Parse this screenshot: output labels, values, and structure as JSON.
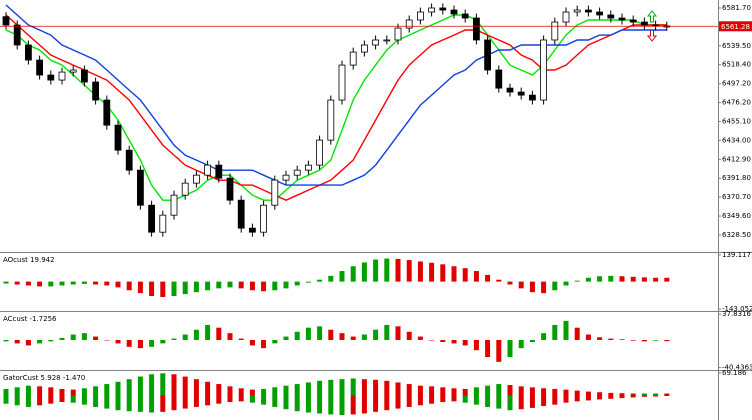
{
  "chart_data": [
    {
      "type": "candlestick",
      "ylim": [
        6309.5,
        6590.6
      ],
      "yticks": [
        {
          "value": 6581.7,
          "label": "6581.70"
        },
        {
          "value": 6539.5,
          "label": "6539.50"
        },
        {
          "value": 6518.4,
          "label": "6518.40"
        },
        {
          "value": 6497.2,
          "label": "6497.20"
        },
        {
          "value": 6476.2,
          "label": "6476.20"
        },
        {
          "value": 6455.1,
          "label": "6455.10"
        },
        {
          "value": 6434.0,
          "label": "6434.00"
        },
        {
          "value": 6412.9,
          "label": "6412.90"
        },
        {
          "value": 6391.8,
          "label": "6391.80"
        },
        {
          "value": 6370.7,
          "label": "6370.70"
        },
        {
          "value": 6349.6,
          "label": "6349.60"
        },
        {
          "value": 6328.5,
          "label": "6328.50"
        }
      ],
      "last_price": 6561.28,
      "last_price_color": "#e00000",
      "up_color": "#ffffff",
      "down_color": "#000000",
      "candles": {
        "open": [
          6572,
          6562.7,
          6540.4,
          6523.6,
          6506.9,
          6501.3,
          6510.2,
          6512.5,
          6499.1,
          6479.0,
          6451.0,
          6423.1,
          6400.8,
          6361.7,
          6331.6,
          6350.6,
          6372.9,
          6386.3,
          6395.2,
          6406.4,
          6391.9,
          6367.3,
          6336.1,
          6331.6,
          6361.7,
          6389.7,
          6395.2,
          6400.8,
          6406.4,
          6434.3,
          6479.0,
          6518.0,
          6532.5,
          6540.4,
          6546.0,
          6546.0,
          6559.3,
          6568.3,
          6577.2,
          6581.7,
          6579.4,
          6575.0,
          6570.5,
          6546.0,
          6512.5,
          6492.3,
          6487.9,
          6484.5,
          6479.0,
          6546.0,
          6566.0,
          6577.2,
          6579.4,
          6577.2,
          6573.9,
          6570.5,
          6568.3,
          6566.0,
          6562.7,
          6561.6
        ],
        "high": [
          6577,
          6567.7,
          6545.4,
          6528.6,
          6511.9,
          6515.2,
          6517.5,
          6517.5,
          6504.1,
          6484.0,
          6456.0,
          6428.1,
          6405.8,
          6366.7,
          6355.6,
          6377.9,
          6391.3,
          6400.2,
          6411.4,
          6411.4,
          6396.9,
          6372.3,
          6341.1,
          6366.7,
          6394.7,
          6400.2,
          6405.8,
          6411.4,
          6439.3,
          6484.0,
          6523.0,
          6537.5,
          6545.4,
          6551.0,
          6551.0,
          6564.3,
          6573.3,
          6582.2,
          6586.7,
          6586.7,
          6584.4,
          6580.0,
          6575.5,
          6551.0,
          6517.5,
          6497.3,
          6492.9,
          6489.5,
          6551.0,
          6571.0,
          6582.2,
          6584.4,
          6584.4,
          6582.2,
          6578.9,
          6575.5,
          6573.3,
          6571.0,
          6567.7,
          6566.6
        ],
        "low": [
          6557.7,
          6535.4,
          6518.6,
          6501.9,
          6496.3,
          6496.3,
          6505.2,
          6494.1,
          6474.0,
          6446.0,
          6418.1,
          6395.8,
          6356.7,
          6326.6,
          6326.6,
          6345.6,
          6367.9,
          6381.3,
          6390.2,
          6386.9,
          6362.3,
          6331.1,
          6326.6,
          6326.6,
          6356.7,
          6384.7,
          6390.2,
          6395.8,
          6401.4,
          6429.3,
          6474.0,
          6513.0,
          6527.5,
          6535.4,
          6541.0,
          6541.0,
          6554.3,
          6563.3,
          6572.2,
          6574.4,
          6570.0,
          6565.5,
          6541.0,
          6507.5,
          6487.3,
          6482.9,
          6479.5,
          6474.0,
          6474.0,
          6541.0,
          6561.0,
          6572.2,
          6572.2,
          6568.9,
          6565.5,
          6563.3,
          6561.0,
          6557.7,
          6556.6,
          6556.3
        ],
        "close": [
          6562.7,
          6540.4,
          6523.6,
          6506.9,
          6501.3,
          6510.2,
          6512.5,
          6499.1,
          6479.0,
          6451.0,
          6423.1,
          6400.8,
          6361.7,
          6331.6,
          6350.6,
          6372.9,
          6386.3,
          6395.2,
          6406.4,
          6391.9,
          6367.3,
          6336.1,
          6331.6,
          6361.7,
          6389.7,
          6395.2,
          6400.8,
          6406.4,
          6434.3,
          6479.0,
          6518.0,
          6532.5,
          6540.4,
          6546.0,
          6546.0,
          6559.3,
          6568.3,
          6577.2,
          6581.7,
          6579.4,
          6575.0,
          6570.5,
          6546.0,
          6512.5,
          6492.3,
          6487.9,
          6484.5,
          6479.0,
          6546.0,
          6566.0,
          6577.2,
          6579.4,
          6577.2,
          6573.9,
          6570.5,
          6568.3,
          6566.0,
          6562.7,
          6561.6,
          6561.3
        ]
      },
      "series": [
        {
          "color": "#00e600",
          "values": [
            6557.1,
            6551.5,
            6540.4,
            6534.8,
            6523.6,
            6518.0,
            6506.9,
            6495.7,
            6484.5,
            6473.4,
            6456.6,
            6434.3,
            6412.0,
            6384.1,
            6367.3,
            6367.3,
            6372.9,
            6378.5,
            6389.6,
            6395.2,
            6395.2,
            6384.1,
            6372.9,
            6367.3,
            6367.3,
            6378.5,
            6389.6,
            6395.2,
            6400.8,
            6412.0,
            6445.5,
            6479.0,
            6501.3,
            6518.0,
            6534.8,
            6546.0,
            6551.5,
            6557.1,
            6562.7,
            6568.3,
            6573.9,
            6573.9,
            6568.3,
            6551.5,
            6534.8,
            6518.0,
            6512.5,
            6506.9,
            6518.0,
            6534.8,
            6551.5,
            6562.7,
            6568.3,
            6568.3,
            6568.3,
            6568.3,
            6568.3,
            6562.7,
            6562.7,
            6562.7
          ]
        },
        {
          "color": "#ff0000",
          "values": [
            6573.9,
            6562.7,
            6551.5,
            6540.4,
            6529.2,
            6523.6,
            6518.0,
            6512.5,
            6506.9,
            6501.3,
            6490.1,
            6479.0,
            6462.2,
            6445.5,
            6428.7,
            6417.6,
            6406.4,
            6400.8,
            6395.2,
            6389.6,
            6389.6,
            6384.1,
            6384.1,
            6378.5,
            6372.9,
            6367.3,
            6372.9,
            6378.5,
            6384.1,
            6389.6,
            6400.8,
            6412.0,
            6434.3,
            6456.6,
            6479.0,
            6501.3,
            6518.0,
            6529.2,
            6540.4,
            6546.0,
            6551.5,
            6557.1,
            6557.1,
            6551.5,
            6546.0,
            6540.4,
            6529.2,
            6523.6,
            6512.5,
            6512.5,
            6518.0,
            6529.2,
            6540.4,
            6546.0,
            6551.5,
            6557.1,
            6562.7,
            6562.7,
            6562.7,
            6562.7
          ]
        },
        {
          "color": "#1040e0",
          "values": [
            6585.0,
            6573.9,
            6562.7,
            6557.1,
            6551.5,
            6540.4,
            6534.8,
            6529.2,
            6523.6,
            6512.5,
            6501.3,
            6490.1,
            6479.0,
            6462.2,
            6445.5,
            6428.7,
            6417.6,
            6412.0,
            6406.4,
            6400.8,
            6400.8,
            6400.8,
            6400.8,
            6395.2,
            6389.6,
            6384.1,
            6384.1,
            6384.1,
            6384.1,
            6384.1,
            6384.1,
            6389.6,
            6395.2,
            6406.4,
            6423.1,
            6439.9,
            6456.6,
            6473.4,
            6484.5,
            6495.7,
            6506.9,
            6512.5,
            6523.6,
            6529.2,
            6534.8,
            6534.8,
            6540.4,
            6540.4,
            6540.4,
            6540.4,
            6540.4,
            6546.0,
            6546.0,
            6551.5,
            6551.5,
            6557.1,
            6557.1,
            6557.1,
            6557.1,
            6557.1
          ]
        }
      ]
    },
    {
      "type": "bar",
      "title": "AOcust 19.942",
      "ylim": [
        -153,
        149
      ],
      "yticks": [
        139.117,
        -143.052
      ],
      "color_by": "change",
      "up_color": "#00a000",
      "down_color": "#e00000",
      "series": [
        {
          "values": [
            -10,
            -15,
            -20,
            -25,
            -25,
            -20,
            -15,
            -12,
            -15,
            -20,
            -30,
            -45,
            -60,
            -75,
            -80,
            -75,
            -65,
            -55,
            -45,
            -35,
            -30,
            -35,
            -45,
            -50,
            -45,
            -35,
            -20,
            -5,
            10,
            30,
            55,
            80,
            100,
            115,
            120,
            118,
            112,
            105,
            98,
            90,
            80,
            70,
            55,
            35,
            10,
            -15,
            -35,
            -55,
            -60,
            -45,
            -20,
            5,
            20,
            28,
            30,
            28,
            25,
            22,
            20,
            19.942
          ]
        }
      ]
    },
    {
      "type": "bar",
      "title": "ACcust -1.7256",
      "ylim": [
        -44,
        41
      ],
      "yticks": [
        37.8316,
        -40.4363
      ],
      "color_by": "change",
      "up_color": "#00a000",
      "down_color": "#e00000",
      "series": [
        {
          "values": [
            -2,
            -5,
            -8,
            -5,
            -2,
            3,
            8,
            10,
            5,
            0,
            -5,
            -10,
            -12,
            -10,
            -5,
            2,
            8,
            15,
            22,
            18,
            10,
            2,
            -8,
            -12,
            -5,
            5,
            12,
            18,
            20,
            15,
            10,
            5,
            8,
            15,
            22,
            20,
            12,
            5,
            0,
            -3,
            -5,
            -8,
            -15,
            -25,
            -32,
            -25,
            -12,
            -3,
            10,
            22,
            28,
            18,
            8,
            4,
            2,
            1,
            -1,
            -2,
            -1,
            -1.7256
          ]
        }
      ]
    },
    {
      "type": "bar",
      "title": "GatorCust 5.928 -1.470",
      "ylim": [
        -75,
        75
      ],
      "yticks": [
        69.186
      ],
      "color_by": "growth",
      "up_color": "#00a000",
      "down_color": "#e00000",
      "series": [
        {
          "values": [
            20,
            25,
            30,
            28,
            25,
            20,
            18,
            22,
            28,
            35,
            42,
            50,
            58,
            65,
            68,
            65,
            58,
            50,
            42,
            35,
            28,
            22,
            18,
            20,
            25,
            30,
            35,
            40,
            45,
            48,
            50,
            52,
            50,
            48,
            45,
            40,
            35,
            30,
            28,
            25,
            22,
            20,
            25,
            30,
            35,
            32,
            28,
            25,
            22,
            20,
            18,
            15,
            12,
            10,
            8,
            7,
            6,
            6,
            6,
            5.928
          ]
        },
        {
          "values": [
            -25,
            -30,
            -35,
            -30,
            -25,
            -20,
            -22,
            -28,
            -35,
            -40,
            -45,
            -48,
            -50,
            -52,
            -50,
            -45,
            -40,
            -35,
            -30,
            -25,
            -20,
            -18,
            -22,
            -28,
            -35,
            -42,
            -48,
            -52,
            -55,
            -58,
            -60,
            -58,
            -55,
            -50,
            -45,
            -40,
            -35,
            -30,
            -25,
            -20,
            -18,
            -22,
            -28,
            -35,
            -40,
            -45,
            -42,
            -38,
            -32,
            -28,
            -22,
            -18,
            -15,
            -12,
            -10,
            -8,
            -6,
            -4,
            -3,
            -1.47
          ]
        }
      ]
    }
  ]
}
